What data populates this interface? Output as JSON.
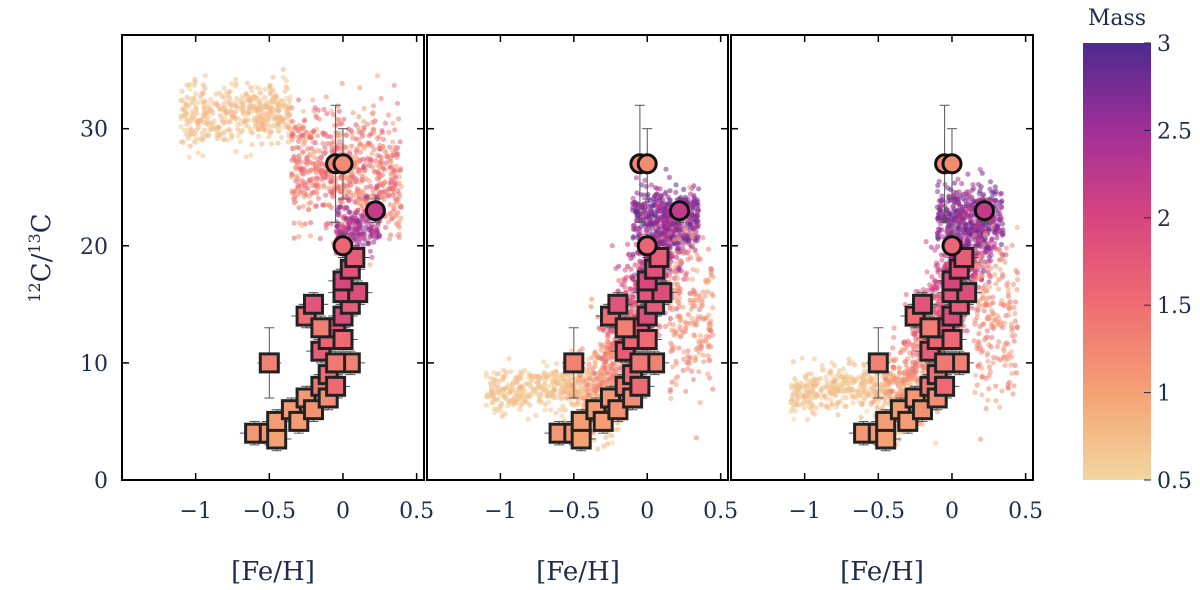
{
  "chart_data": [
    {
      "type": "scatter",
      "panel": 1,
      "xlabel": "[Fe/H]",
      "ylabel_main": "C",
      "ylabel_sup1": "12",
      "ylabel_sup2": "13",
      "ylabel_sep": "/",
      "xlim": [
        -1.5,
        0.55
      ],
      "ylim": [
        0,
        38
      ],
      "xticks": [
        -1,
        -0.5,
        0,
        0.5
      ],
      "xtick_labels": [
        "−1",
        "−0.5",
        "0",
        "0.5"
      ],
      "yticks": [
        0,
        10,
        20,
        30
      ],
      "ytick_labels": [
        "0",
        "10",
        "20",
        "30"
      ],
      "model": "population-synthesis cloud colored by mass"
    },
    {
      "type": "scatter",
      "panel": 2,
      "xlabel": "[Fe/H]",
      "xlim": [
        -1.5,
        0.55
      ],
      "ylim": [
        0,
        38
      ],
      "xticks": [
        -1,
        -0.5,
        0,
        0.5
      ],
      "xtick_labels": [
        "−1",
        "−0.5",
        "0",
        "0.5"
      ]
    },
    {
      "type": "scatter",
      "panel": 3,
      "xlabel": "[Fe/H]",
      "xlim": [
        -1.5,
        0.55
      ],
      "ylim": [
        0,
        38
      ],
      "xticks": [
        -1,
        -0.5,
        0,
        0.5
      ],
      "xtick_labels": [
        "−1",
        "−0.5",
        "0",
        "0.5"
      ]
    }
  ],
  "colorbar": {
    "title": "Mass",
    "range": [
      0.5,
      3
    ],
    "ticks": [
      0.5,
      1,
      1.5,
      2,
      2.5,
      3
    ],
    "tick_labels": [
      "0.5",
      "1",
      "1.5",
      "2",
      "2.5",
      "3"
    ],
    "colors": [
      "#f2d7a0",
      "#f4a274",
      "#ef6d72",
      "#d8457f",
      "#a12f98",
      "#4b2a8f"
    ]
  },
  "observations": {
    "squares": [
      {
        "feh": -0.6,
        "c": 4,
        "ex": 0.1,
        "ey": 1,
        "mass": 1.1
      },
      {
        "feh": -0.5,
        "c": 4,
        "ex": 0.1,
        "ey": 1,
        "mass": 1.1
      },
      {
        "feh": -0.45,
        "c": 3.5,
        "ex": 0.1,
        "ey": 1,
        "mass": 1.0
      },
      {
        "feh": -0.5,
        "c": 10,
        "ex": 0.08,
        "ey": 3,
        "mass": 1.3
      },
      {
        "feh": -0.45,
        "c": 5,
        "ex": 0.1,
        "ey": 1,
        "mass": 1.05
      },
      {
        "feh": -0.35,
        "c": 6,
        "ex": 0.1,
        "ey": 1,
        "mass": 1.05
      },
      {
        "feh": -0.3,
        "c": 5,
        "ex": 0.1,
        "ey": 1,
        "mass": 1.05
      },
      {
        "feh": -0.25,
        "c": 7,
        "ex": 0.1,
        "ey": 1,
        "mass": 1.1
      },
      {
        "feh": -0.2,
        "c": 6,
        "ex": 0.1,
        "ey": 1,
        "mass": 1.15
      },
      {
        "feh": -0.15,
        "c": 8,
        "ex": 0.1,
        "ey": 1,
        "mass": 1.4
      },
      {
        "feh": -0.1,
        "c": 9,
        "ex": 0.1,
        "ey": 1,
        "mass": 1.5
      },
      {
        "feh": -0.1,
        "c": 7,
        "ex": 0.1,
        "ey": 1,
        "mass": 1.2
      },
      {
        "feh": -0.05,
        "c": 8,
        "ex": 0.1,
        "ey": 1,
        "mass": 1.55
      },
      {
        "feh": -0.15,
        "c": 11,
        "ex": 0.1,
        "ey": 1,
        "mass": 1.7
      },
      {
        "feh": -0.1,
        "c": 12,
        "ex": 0.1,
        "ey": 1,
        "mass": 1.6
      },
      {
        "feh": -0.05,
        "c": 13,
        "ex": 0.1,
        "ey": 1,
        "mass": 1.75
      },
      {
        "feh": -0.25,
        "c": 14,
        "ex": 0.1,
        "ey": 1,
        "mass": 1.5
      },
      {
        "feh": -0.2,
        "c": 15,
        "ex": 0.1,
        "ey": 1,
        "mass": 1.8
      },
      {
        "feh": 0.0,
        "c": 14,
        "ex": 0.1,
        "ey": 1,
        "mass": 1.9
      },
      {
        "feh": 0.05,
        "c": 15,
        "ex": 0.1,
        "ey": 1,
        "mass": 1.7
      },
      {
        "feh": 0.0,
        "c": 16,
        "ex": 0.1,
        "ey": 1,
        "mass": 1.8
      },
      {
        "feh": 0.1,
        "c": 16,
        "ex": 0.1,
        "ey": 1,
        "mass": 1.9
      },
      {
        "feh": 0.0,
        "c": 17,
        "ex": 0.1,
        "ey": 1,
        "mass": 2.0
      },
      {
        "feh": 0.05,
        "c": 18,
        "ex": 0.1,
        "ey": 1,
        "mass": 1.85
      },
      {
        "feh": 0.08,
        "c": 19,
        "ex": 0.1,
        "ey": 1,
        "mass": 1.7
      },
      {
        "feh": 0.05,
        "c": 10,
        "ex": 0.1,
        "ey": 1,
        "mass": 1.3
      },
      {
        "feh": -0.05,
        "c": 10,
        "ex": 0.1,
        "ey": 1,
        "mass": 1.4
      },
      {
        "feh": 0.0,
        "c": 12,
        "ex": 0.1,
        "ey": 1,
        "mass": 1.55
      },
      {
        "feh": -0.15,
        "c": 13,
        "ex": 0.1,
        "ey": 1,
        "mass": 1.35
      }
    ],
    "circles": [
      {
        "feh": -0.05,
        "c": 27,
        "ex": 0.05,
        "ey": 5,
        "mass": 1.25
      },
      {
        "feh": 0.0,
        "c": 27,
        "ex": 0.05,
        "ey": 3,
        "mass": 1.2
      },
      {
        "feh": 0.22,
        "c": 23,
        "ex": 0.05,
        "ey": 1,
        "mass": 2.2
      },
      {
        "feh": 0.0,
        "c": 20,
        "ex": 0.05,
        "ey": 1,
        "mass": 1.6
      }
    ]
  }
}
